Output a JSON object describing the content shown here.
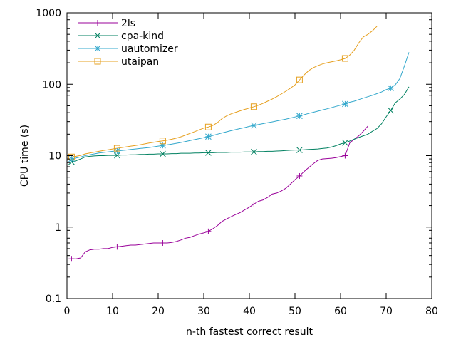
{
  "chart_data": {
    "type": "line",
    "title": "",
    "xlabel": "n-th fastest correct result",
    "ylabel": "CPU time (s)",
    "xlim": [
      0,
      80
    ],
    "ylim": [
      0.1,
      1000
    ],
    "yscale": "log",
    "grid": false,
    "legend_position": "top-left",
    "x_ticks": [
      0,
      10,
      20,
      30,
      40,
      50,
      60,
      70,
      80
    ],
    "x_tick_labels": [
      "0",
      "10",
      "20",
      "30",
      "40",
      "50",
      "60",
      "70",
      "80"
    ],
    "y_ticks": [
      0.1,
      1,
      10,
      100,
      1000
    ],
    "y_tick_labels": [
      "0.1",
      "1",
      "10",
      "100",
      "1000"
    ],
    "series": [
      {
        "name": "2ls",
        "color": "#990099",
        "marker": "plus",
        "marker_every": 10,
        "x": [
          1,
          2,
          3,
          4,
          5,
          6,
          7,
          8,
          9,
          10,
          11,
          12,
          13,
          14,
          15,
          16,
          17,
          18,
          19,
          20,
          21,
          22,
          23,
          24,
          25,
          26,
          27,
          28,
          29,
          30,
          31,
          32,
          33,
          34,
          35,
          36,
          37,
          38,
          39,
          40,
          41,
          42,
          43,
          44,
          45,
          46,
          47,
          48,
          49,
          50,
          51,
          52,
          53,
          54,
          55,
          56,
          57,
          58,
          59,
          60,
          61,
          62,
          63,
          64,
          65,
          66
        ],
        "y": [
          0.36,
          0.36,
          0.37,
          0.45,
          0.48,
          0.49,
          0.49,
          0.5,
          0.5,
          0.52,
          0.53,
          0.54,
          0.55,
          0.56,
          0.56,
          0.57,
          0.58,
          0.59,
          0.6,
          0.6,
          0.6,
          0.6,
          0.61,
          0.63,
          0.66,
          0.7,
          0.72,
          0.76,
          0.8,
          0.83,
          0.87,
          0.95,
          1.05,
          1.2,
          1.3,
          1.4,
          1.5,
          1.6,
          1.75,
          1.9,
          2.1,
          2.3,
          2.4,
          2.6,
          2.9,
          3.0,
          3.2,
          3.5,
          4.0,
          4.6,
          5.2,
          6.0,
          6.8,
          7.7,
          8.6,
          9.0,
          9.1,
          9.2,
          9.4,
          9.7,
          10.0,
          15.0,
          17.0,
          19.0,
          22.0,
          26.0
        ]
      },
      {
        "name": "cpa-kind",
        "color": "#008060",
        "marker": "cross",
        "marker_every": 10,
        "x": [
          1,
          2,
          3,
          4,
          5,
          6,
          7,
          8,
          9,
          10,
          11,
          12,
          13,
          14,
          15,
          16,
          17,
          18,
          19,
          20,
          21,
          22,
          23,
          24,
          25,
          26,
          27,
          28,
          29,
          30,
          31,
          32,
          33,
          34,
          35,
          36,
          37,
          38,
          39,
          40,
          41,
          42,
          43,
          44,
          45,
          46,
          47,
          48,
          49,
          50,
          51,
          52,
          53,
          54,
          55,
          56,
          57,
          58,
          59,
          60,
          61,
          62,
          63,
          64,
          65,
          66,
          67,
          68,
          69,
          70,
          71,
          72,
          73,
          74,
          75
        ],
        "y": [
          8.2,
          8.5,
          9.0,
          9.6,
          9.8,
          9.9,
          10.0,
          10.0,
          10.1,
          10.1,
          10.1,
          10.2,
          10.2,
          10.3,
          10.3,
          10.4,
          10.4,
          10.5,
          10.5,
          10.6,
          10.6,
          10.6,
          10.7,
          10.7,
          10.8,
          10.8,
          10.8,
          10.9,
          10.9,
          11.0,
          11.0,
          11.0,
          11.1,
          11.1,
          11.1,
          11.2,
          11.2,
          11.2,
          11.3,
          11.3,
          11.3,
          11.4,
          11.4,
          11.5,
          11.5,
          11.6,
          11.7,
          11.8,
          11.9,
          12.0,
          12.0,
          12.1,
          12.2,
          12.3,
          12.4,
          12.6,
          12.8,
          13.2,
          13.8,
          14.6,
          15.2,
          16.0,
          17.0,
          18.0,
          19.0,
          20.0,
          22.0,
          24.0,
          28.0,
          35.0,
          43.0,
          55.0,
          62.0,
          72.0,
          92.0
        ]
      },
      {
        "name": "uautomizer",
        "color": "#33A8CC",
        "marker": "star",
        "marker_every": 10,
        "x": [
          1,
          2,
          3,
          4,
          5,
          6,
          7,
          8,
          9,
          10,
          11,
          12,
          13,
          14,
          15,
          16,
          17,
          18,
          19,
          20,
          21,
          22,
          23,
          24,
          25,
          26,
          27,
          28,
          29,
          30,
          31,
          32,
          33,
          34,
          35,
          36,
          37,
          38,
          39,
          40,
          41,
          42,
          43,
          44,
          45,
          46,
          47,
          48,
          49,
          50,
          51,
          52,
          53,
          54,
          55,
          56,
          57,
          58,
          59,
          60,
          61,
          62,
          63,
          64,
          65,
          66,
          67,
          68,
          69,
          70,
          71,
          72,
          73,
          74,
          75
        ],
        "y": [
          9.0,
          9.3,
          9.6,
          10.0,
          10.3,
          10.6,
          10.9,
          11.1,
          11.3,
          11.5,
          11.6,
          11.8,
          12.0,
          12.2,
          12.4,
          12.6,
          12.8,
          13.0,
          13.3,
          13.6,
          13.9,
          14.2,
          14.5,
          14.9,
          15.3,
          15.8,
          16.3,
          16.8,
          17.3,
          17.9,
          18.5,
          19.2,
          20.0,
          20.8,
          21.6,
          22.4,
          23.2,
          24.0,
          24.8,
          25.7,
          26.5,
          27.3,
          28.1,
          28.9,
          29.7,
          30.6,
          31.5,
          32.5,
          33.6,
          34.8,
          36.0,
          37.5,
          39.0,
          40.5,
          42.0,
          43.6,
          45.2,
          47.0,
          49.0,
          51.0,
          53.0,
          56.0,
          58.0,
          61.0,
          64.0,
          67.0,
          70.0,
          74.0,
          78.0,
          84.0,
          88.0,
          98.0,
          120.0,
          180.0,
          280.0
        ]
      },
      {
        "name": "utaipan",
        "color": "#E6A020",
        "marker": "square",
        "marker_every": 10,
        "x": [
          1,
          2,
          3,
          4,
          5,
          6,
          7,
          8,
          9,
          10,
          11,
          12,
          13,
          14,
          15,
          16,
          17,
          18,
          19,
          20,
          21,
          22,
          23,
          24,
          25,
          26,
          27,
          28,
          29,
          30,
          31,
          32,
          33,
          34,
          35,
          36,
          37,
          38,
          39,
          40,
          41,
          42,
          43,
          44,
          45,
          46,
          47,
          48,
          49,
          50,
          51,
          52,
          53,
          54,
          55,
          56,
          57,
          58,
          59,
          60,
          61,
          62,
          63,
          64,
          65,
          66,
          67,
          68
        ],
        "y": [
          9.6,
          9.8,
          10.1,
          10.6,
          10.9,
          11.2,
          11.5,
          11.8,
          12.1,
          12.4,
          12.7,
          13.0,
          13.3,
          13.6,
          13.9,
          14.2,
          14.6,
          15.0,
          15.4,
          15.8,
          16.1,
          16.5,
          17.0,
          17.6,
          18.4,
          19.4,
          20.5,
          21.7,
          23.0,
          24.3,
          25.2,
          26.5,
          29.0,
          33.0,
          36.0,
          38.5,
          40.5,
          42.5,
          44.5,
          46.5,
          48.5,
          51.0,
          54.0,
          58.0,
          62.0,
          67.0,
          73.0,
          80.0,
          88.0,
          98.0,
          115.0,
          135.0,
          155.0,
          170.0,
          182.0,
          192.0,
          200.0,
          206.0,
          212.0,
          220.0,
          230.0,
          255.0,
          300.0,
          380.0,
          460.0,
          500.0,
          560.0,
          650.0
        ]
      }
    ]
  }
}
